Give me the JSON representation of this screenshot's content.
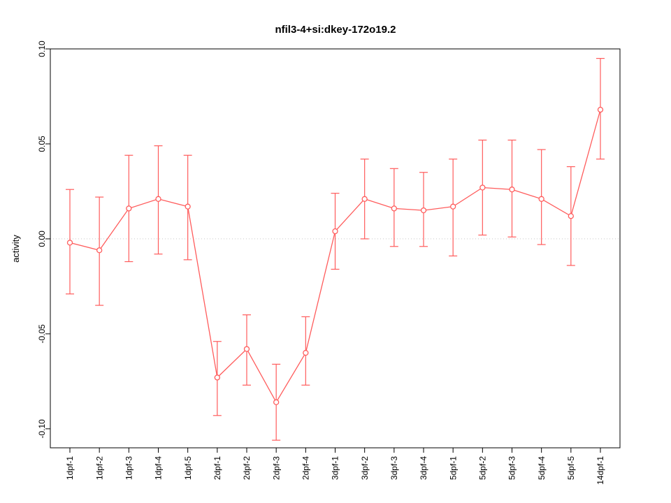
{
  "chart_data": {
    "type": "line",
    "title": "nfil3-4+si:dkey-172o19.2",
    "ylabel": "activity",
    "xlabel": "",
    "categories": [
      "1dpf-1",
      "1dpf-2",
      "1dpf-3",
      "1dpf-4",
      "1dpf-5",
      "2dpf-1",
      "2dpf-2",
      "2dpf-3",
      "2dpf-4",
      "3dpf-1",
      "3dpf-2",
      "3dpf-3",
      "3dpf-4",
      "5dpf-1",
      "5dpf-2",
      "5dpf-3",
      "5dpf-4",
      "5dpf-5",
      "14dpf-1"
    ],
    "series": [
      {
        "name": "activity",
        "values": [
          -0.002,
          -0.006,
          0.016,
          0.021,
          0.017,
          -0.073,
          -0.058,
          -0.086,
          -0.06,
          0.004,
          0.021,
          0.016,
          0.015,
          0.017,
          0.027,
          0.026,
          0.021,
          0.012,
          0.068
        ]
      }
    ],
    "error_low": [
      -0.029,
      -0.035,
      -0.012,
      -0.008,
      -0.011,
      -0.093,
      -0.077,
      -0.106,
      -0.077,
      -0.016,
      0.0,
      -0.004,
      -0.004,
      -0.009,
      0.002,
      0.001,
      -0.003,
      -0.014,
      0.042
    ],
    "error_high": [
      0.026,
      0.022,
      0.044,
      0.049,
      0.044,
      -0.054,
      -0.04,
      -0.066,
      -0.041,
      0.024,
      0.042,
      0.037,
      0.035,
      0.042,
      0.052,
      0.052,
      0.047,
      0.038,
      0.095
    ],
    "ylim": [
      -0.11,
      0.1
    ],
    "yticks": [
      -0.1,
      -0.05,
      0.0,
      0.05,
      0.1
    ],
    "ytick_labels": [
      "-0.10",
      "-0.05",
      "0.00",
      "0.05",
      "0.10"
    ],
    "grid": false,
    "zero_line": true,
    "legend": "none",
    "colors": {
      "series": "#ff5c5c",
      "point_fill": "#ffffff",
      "axis": "#000000",
      "zero_line": "#c6c6c6",
      "background": "#ffffff"
    }
  }
}
